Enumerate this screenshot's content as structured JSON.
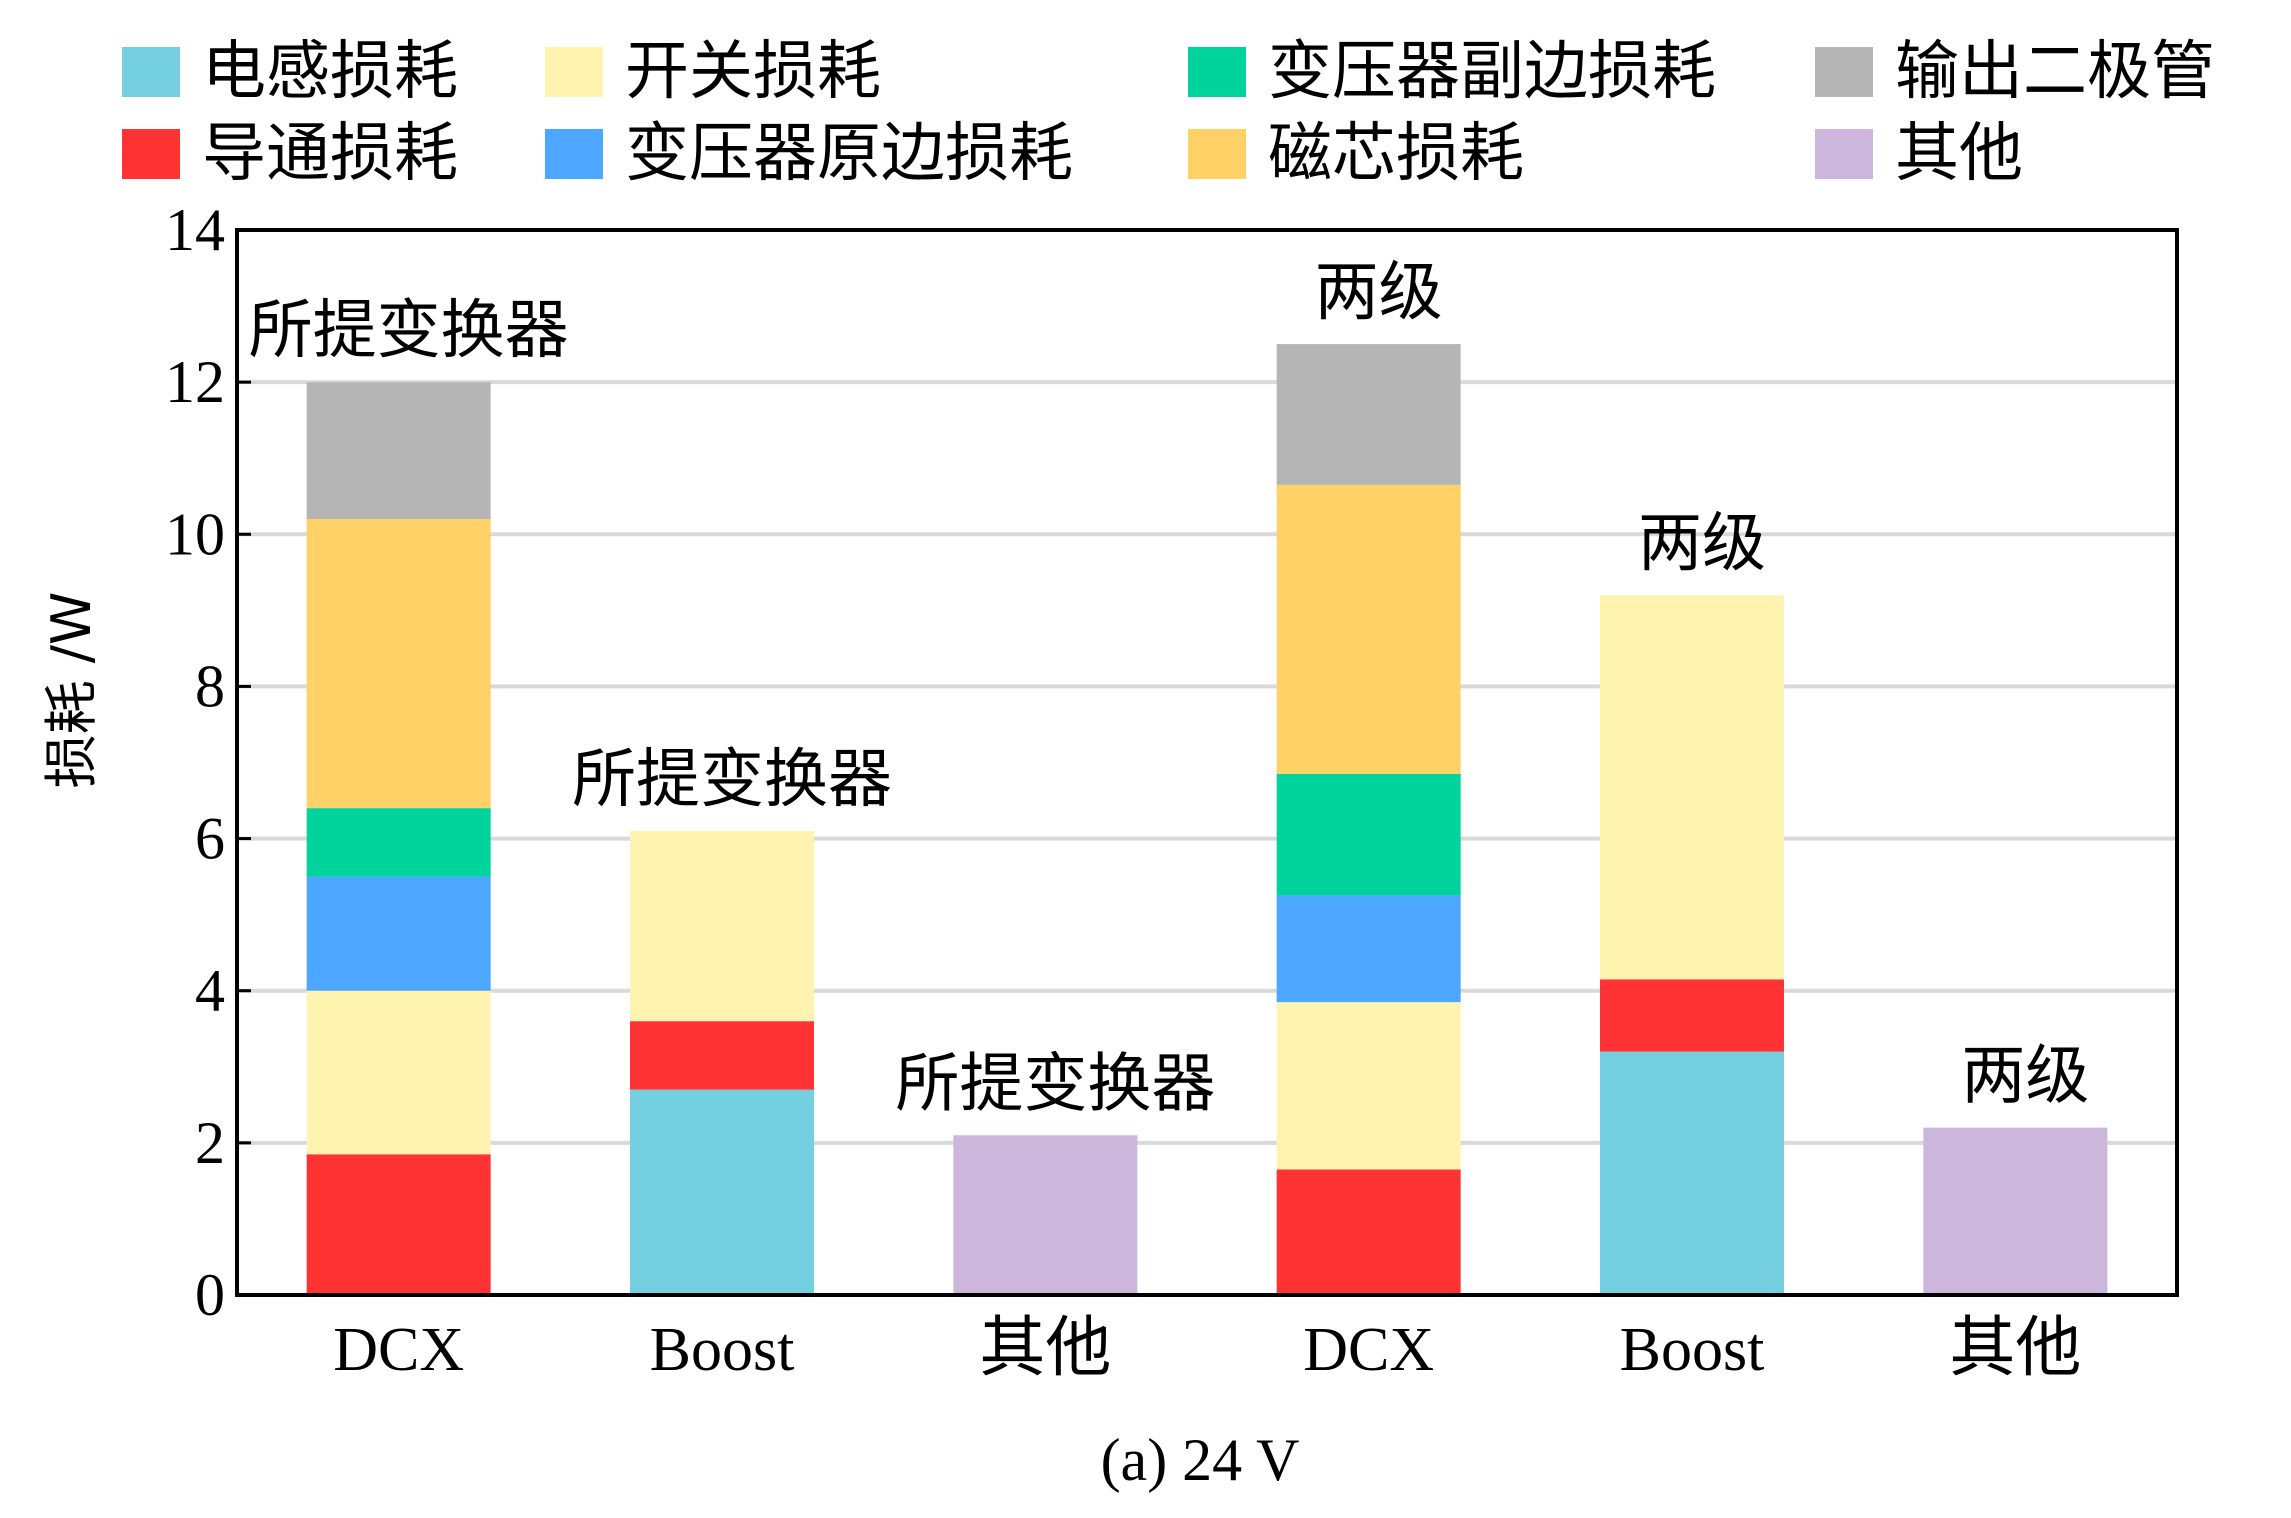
{
  "chart_data": {
    "type": "bar",
    "stacked": true,
    "categories": [
      "DCX",
      "Boost",
      "其他",
      "DCX",
      "Boost",
      "其他"
    ],
    "group_labels": [
      "所提变换器",
      "所提变换器",
      "所提变换器",
      "两级",
      "两级",
      "两级"
    ],
    "ylabel": "损耗 /W",
    "caption": "(a) 24 V",
    "ylim": [
      0,
      14
    ],
    "yticks": [
      0,
      2,
      4,
      6,
      8,
      10,
      12,
      14
    ],
    "grid": true,
    "legend_position": "top",
    "series": [
      {
        "name": "电感损耗",
        "color": "#74CFE1",
        "values": [
          0,
          2.7,
          0,
          0,
          3.2,
          0
        ]
      },
      {
        "name": "导通损耗",
        "color": "#FF3333",
        "values": [
          1.85,
          0.9,
          0,
          1.65,
          0.95,
          0
        ]
      },
      {
        "name": "开关损耗",
        "color": "#FFF3B0",
        "values": [
          2.15,
          2.5,
          0,
          2.2,
          5.05,
          0
        ]
      },
      {
        "name": "变压器原边损耗",
        "color": "#4DA6FF",
        "values": [
          1.5,
          0,
          0,
          1.4,
          0,
          0
        ]
      },
      {
        "name": "变压器副边损耗",
        "color": "#00D39C",
        "values": [
          0.9,
          0,
          0,
          1.6,
          0,
          0
        ]
      },
      {
        "name": "磁芯损耗",
        "color": "#FFD166",
        "values": [
          3.8,
          0,
          0,
          3.8,
          0,
          0
        ]
      },
      {
        "name": "输出二极管",
        "color": "#B5B5B5",
        "values": [
          1.8,
          0,
          0,
          1.85,
          0,
          0
        ]
      },
      {
        "name": "其他",
        "color": "#CDB6DB",
        "values": [
          0,
          0,
          2.1,
          0,
          0,
          2.2
        ]
      }
    ]
  }
}
